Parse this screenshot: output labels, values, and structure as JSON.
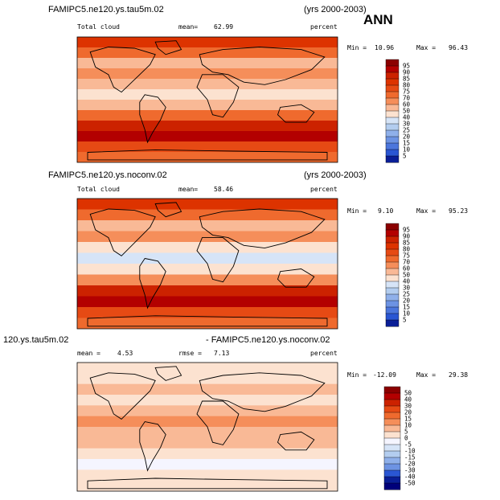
{
  "chart_data": [
    {
      "type": "heatmap",
      "title": "FAMIPC5.ne120.ys.tau5m.02",
      "years": "(yrs 2000-2003)",
      "season": "ANN",
      "field": "Total cloud",
      "mean_label": "mean=",
      "mean": "62.99",
      "units": "percent",
      "min_label": "Min =",
      "min": "10.96",
      "max_label": "Max =",
      "max": "96.43",
      "colorbar_levels": [
        "95",
        "90",
        "85",
        "80",
        "75",
        "70",
        "60",
        "50",
        "40",
        "30",
        "25",
        "20",
        "15",
        "10",
        "5"
      ],
      "colorbar_colors": [
        "#8b0000",
        "#b30000",
        "#cc2200",
        "#dd3300",
        "#e64a14",
        "#ef6a2e",
        "#f58e5a",
        "#f9b996",
        "#fce2d0",
        "#d6e4f7",
        "#b3cdef",
        "#8fb0ea",
        "#6d93e3",
        "#4c76dc",
        "#2a56d3",
        "#0a1e96"
      ],
      "bands": [
        {
          "level": 82
        },
        {
          "level": 72
        },
        {
          "level": 58
        },
        {
          "level": 66
        },
        {
          "level": 55
        },
        {
          "level": 40
        },
        {
          "level": 52
        },
        {
          "level": 70
        },
        {
          "level": 88
        },
        {
          "level": 92
        },
        {
          "level": 78
        },
        {
          "level": 74
        }
      ]
    },
    {
      "type": "heatmap",
      "title": "FAMIPC5.ne120.ys.noconv.02",
      "years": "(yrs 2000-2003)",
      "field": "Total cloud",
      "mean_label": "mean=",
      "mean": "58.46",
      "units": "percent",
      "min_label": "Min =",
      "min": "9.10",
      "max_label": "Max =",
      "max": "95.23",
      "colorbar_levels": [
        "95",
        "90",
        "85",
        "80",
        "75",
        "70",
        "60",
        "50",
        "40",
        "30",
        "25",
        "20",
        "15",
        "10",
        "5"
      ],
      "colorbar_colors": [
        "#8b0000",
        "#b30000",
        "#cc2200",
        "#dd3300",
        "#e64a14",
        "#ef6a2e",
        "#f58e5a",
        "#f9b996",
        "#fce2d0",
        "#d6e4f7",
        "#b3cdef",
        "#8fb0ea",
        "#6d93e3",
        "#4c76dc",
        "#2a56d3",
        "#0a1e96"
      ],
      "bands": [
        {
          "level": 80
        },
        {
          "level": 70
        },
        {
          "level": 55
        },
        {
          "level": 62
        },
        {
          "level": 45
        },
        {
          "level": 30
        },
        {
          "level": 48
        },
        {
          "level": 66
        },
        {
          "level": 86
        },
        {
          "level": 90
        },
        {
          "level": 76
        },
        {
          "level": 72
        }
      ]
    },
    {
      "type": "heatmap",
      "title_left": "120.ys.tau5m.02",
      "title_right": "- FAMIPC5.ne120.ys.noconv.02",
      "mean_label": "mean =",
      "mean": "4.53",
      "rmse_label": "rmse =",
      "rmse": "7.13",
      "units": "percent",
      "min_label": "Min =",
      "min": "-12.09",
      "max_label": "Max =",
      "max": "29.38",
      "colorbar_levels": [
        "50",
        "40",
        "30",
        "20",
        "15",
        "10",
        "5",
        "0",
        "-5",
        "-10",
        "-15",
        "-20",
        "-30",
        "-40",
        "-50"
      ],
      "colorbar_colors": [
        "#8b0000",
        "#b30000",
        "#cc2200",
        "#e64a14",
        "#ef6a2e",
        "#f58e5a",
        "#f9b996",
        "#fce2d0",
        "#f5f5ff",
        "#d6e4f7",
        "#b3cdef",
        "#8fb0ea",
        "#6d93e3",
        "#2a56d3",
        "#0a1e96",
        "#00007a"
      ],
      "bands": [
        {
          "level": 3
        },
        {
          "level": 1
        },
        {
          "level": 6
        },
        {
          "level": 4
        },
        {
          "level": 9
        },
        {
          "level": 12
        },
        {
          "level": 8
        },
        {
          "level": 5
        },
        {
          "level": 2
        },
        {
          "level": -3
        },
        {
          "level": 1
        },
        {
          "level": 0
        }
      ]
    }
  ]
}
